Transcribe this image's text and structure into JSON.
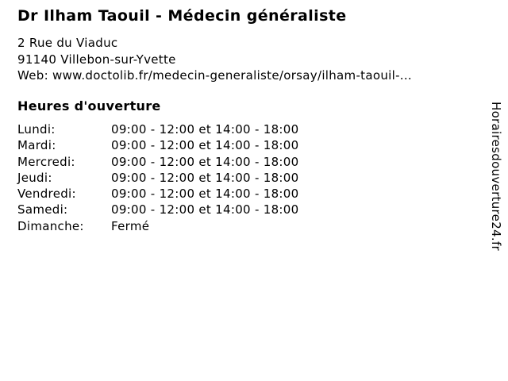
{
  "header": {
    "title": "Dr Ilham Taouil - Médecin généraliste",
    "address_line1": "2 Rue du Viaduc",
    "address_line2": "91140 Villebon-sur-Yvette",
    "web_line": "Web: www.doctolib.fr/medecin-generaliste/orsay/ilham-taouil-..."
  },
  "hours": {
    "heading": "Heures d'ouverture",
    "rows": [
      {
        "day": "Lundi:",
        "time": "09:00 - 12:00 et 14:00 - 18:00"
      },
      {
        "day": "Mardi:",
        "time": "09:00 - 12:00 et 14:00 - 18:00"
      },
      {
        "day": "Mercredi:",
        "time": "09:00 - 12:00 et 14:00 - 18:00"
      },
      {
        "day": "Jeudi:",
        "time": "09:00 - 12:00 et 14:00 - 18:00"
      },
      {
        "day": "Vendredi:",
        "time": "09:00 - 12:00 et 14:00 - 18:00"
      },
      {
        "day": "Samedi:",
        "time": "09:00 - 12:00 et 14:00 - 18:00"
      },
      {
        "day": "Dimanche:",
        "time": "Fermé"
      }
    ]
  },
  "watermark": {
    "text": "Horairesdouverture24.fr"
  },
  "colors": {
    "text": "#000000",
    "background": "#ffffff"
  }
}
